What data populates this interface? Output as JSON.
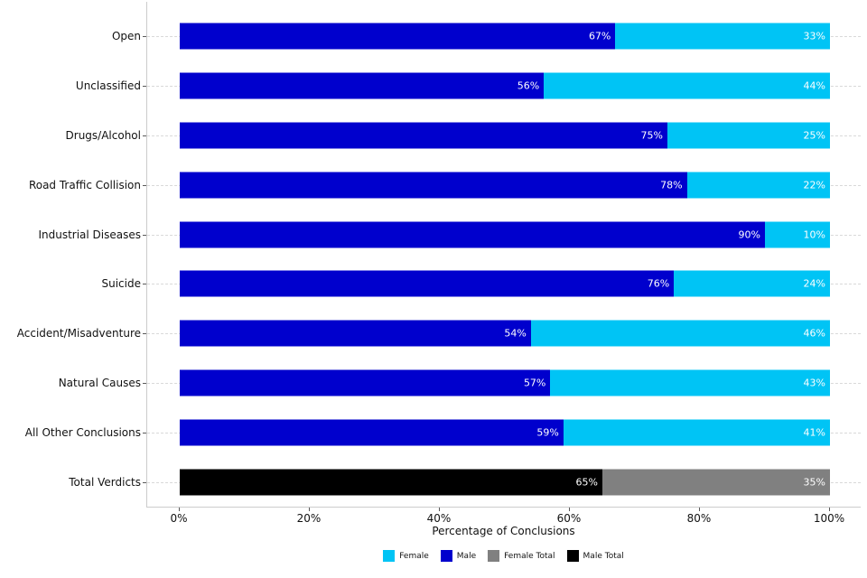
{
  "chart_data": {
    "type": "bar",
    "orientation": "horizontal",
    "stacked": true,
    "title": "",
    "xlabel": "Percentage of Conclusions",
    "ylabel": "",
    "xlim": [
      0,
      100
    ],
    "x_tick_labels": [
      "0%",
      "20%",
      "40%",
      "60%",
      "80%",
      "100%"
    ],
    "grid": "horizontal-dashed",
    "categories": [
      "Open",
      "Unclassified",
      "Drugs/Alcohol",
      "Road Traffic Collision",
      "Industrial Diseases",
      "Suicide",
      "Accident/Misadventure",
      "Natural Causes",
      "All Other Conclusions",
      "Total Verdicts"
    ],
    "series": [
      {
        "name": "Male",
        "color": "#0000CD",
        "values": [
          67,
          56,
          75,
          78,
          90,
          76,
          54,
          57,
          59,
          null
        ]
      },
      {
        "name": "Male Total",
        "color": "#000000",
        "values": [
          null,
          null,
          null,
          null,
          null,
          null,
          null,
          null,
          null,
          65
        ]
      },
      {
        "name": "Female",
        "color": "#00C4F5",
        "values": [
          33,
          44,
          25,
          22,
          10,
          24,
          46,
          43,
          41,
          null
        ]
      },
      {
        "name": "Female Total",
        "color": "#808080",
        "values": [
          null,
          null,
          null,
          null,
          null,
          null,
          null,
          null,
          null,
          35
        ]
      }
    ],
    "bar_label_format": "{value}%",
    "legend": {
      "position": "bottom-center",
      "entries": [
        {
          "label": "Female",
          "color": "#00C4F5"
        },
        {
          "label": "Male",
          "color": "#0000CD"
        },
        {
          "label": "Female Total",
          "color": "#808080"
        },
        {
          "label": "Male Total",
          "color": "#000000"
        }
      ]
    }
  }
}
